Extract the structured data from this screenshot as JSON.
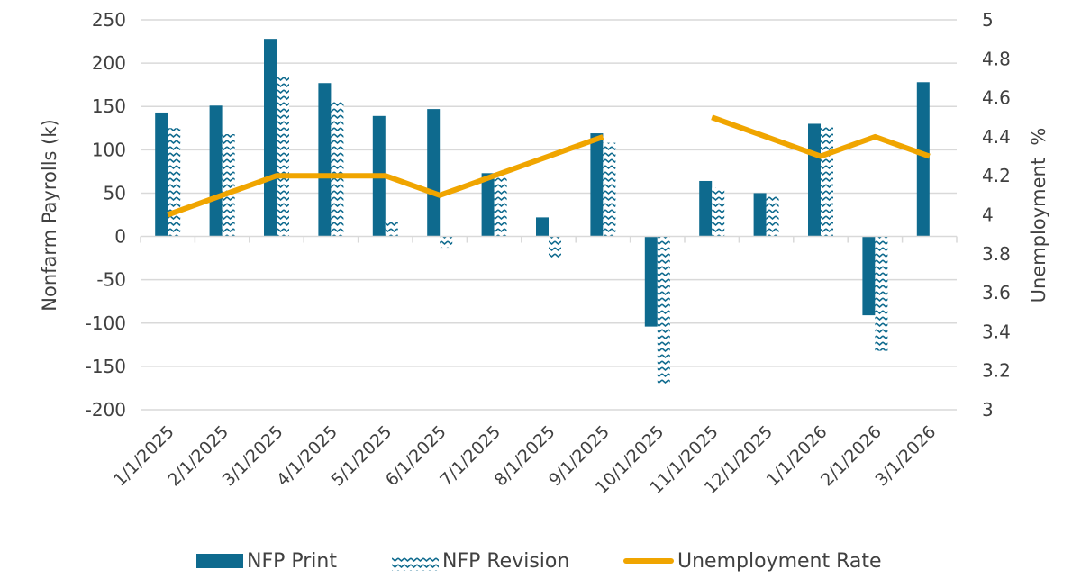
{
  "chart_data": {
    "type": "bar",
    "title": "",
    "categories": [
      "1/1/2025",
      "2/1/2025",
      "3/1/2025",
      "4/1/2025",
      "5/1/2025",
      "6/1/2025",
      "7/1/2025",
      "8/1/2025",
      "9/1/2025",
      "10/1/2025",
      "11/1/2025",
      "12/1/2025",
      "1/1/2026",
      "2/1/2026",
      "3/1/2026"
    ],
    "series": [
      {
        "name": "NFP Print",
        "kind": "bar",
        "axis": "left",
        "color": "#0e6a8e",
        "values": [
          143,
          151,
          228,
          177,
          139,
          147,
          73,
          22,
          119,
          -104,
          64,
          50,
          130,
          -91,
          178
        ]
      },
      {
        "name": "NFP Revision",
        "kind": "bar-pattern",
        "axis": "left",
        "color": "#0e6a8e",
        "values": [
          125,
          118,
          186,
          157,
          19,
          -13,
          70,
          -26,
          108,
          -171,
          56,
          47,
          127,
          -132,
          null
        ]
      },
      {
        "name": "Unemployment Rate",
        "kind": "line",
        "axis": "right",
        "color": "#f0a500",
        "values": [
          4.0,
          4.1,
          4.2,
          4.2,
          4.2,
          4.1,
          4.2,
          4.3,
          4.4,
          null,
          4.5,
          4.4,
          4.3,
          4.4,
          4.3
        ]
      }
    ],
    "y_left": {
      "label": "Nonfarm Payrolls (k)",
      "ylim": [
        -200,
        250
      ],
      "ticks": [
        "250",
        "200",
        "150",
        "100",
        "50",
        "0",
        "-50",
        "-100",
        "-150",
        "-200"
      ]
    },
    "y_right": {
      "label": "Unemployment  %",
      "ylim": [
        3,
        5
      ],
      "ticks": [
        "5",
        "4.8",
        "4.6",
        "4.4",
        "4.2",
        "4",
        "3.8",
        "3.6",
        "3.4",
        "3.2",
        "3"
      ]
    },
    "grid": true,
    "legend_position": "bottom"
  }
}
